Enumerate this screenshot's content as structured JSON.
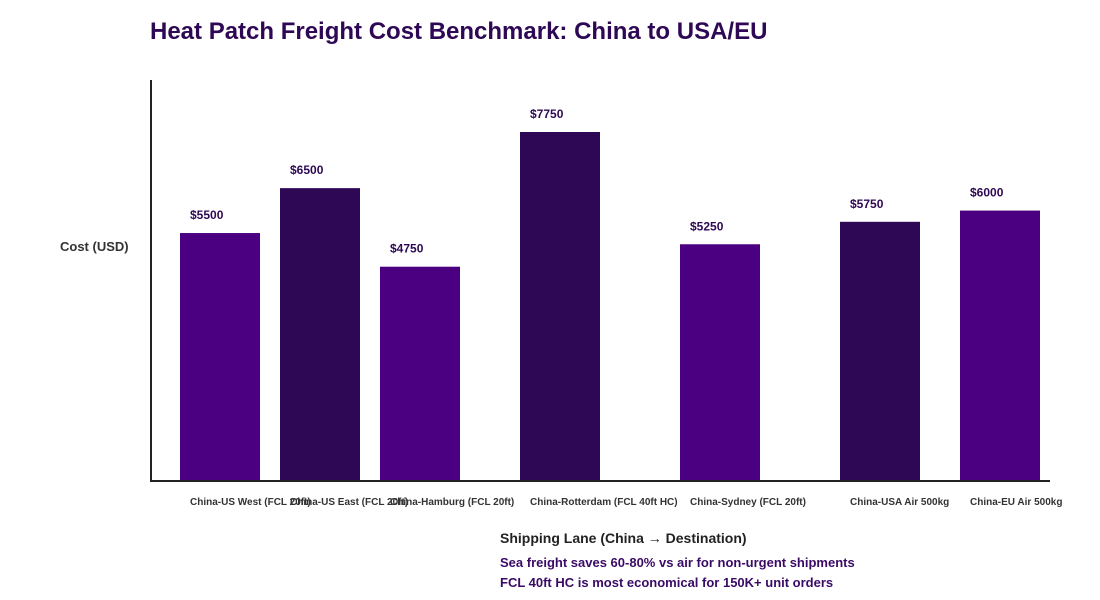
{
  "chart_data": {
    "type": "bar",
    "title": "Heat Patch Freight Cost Benchmark: China to USA/EU",
    "xlabel": "Shipping Lane (China → Destination)",
    "ylabel": "Cost (USD)",
    "categories": [
      "China-US West (FCL 20ft)",
      "China-US East (FCL 20ft)",
      "China-Hamburg (FCL 20ft)",
      "China-Rotterdam (FCL 40ft HC)",
      "China-Sydney (FCL 20ft)",
      "China-USA Air 500kg",
      "China-EU Air 500kg"
    ],
    "values": [
      5500,
      6500,
      4750,
      7750,
      5250,
      5750,
      6000
    ],
    "value_labels": [
      "$5500",
      "$6500",
      "$4750",
      "$7750",
      "$5250",
      "$5750",
      "$6000"
    ],
    "bar_colors": [
      "#4b0082",
      "#2e0854",
      "#4b0082",
      "#2e0854",
      "#4b0082",
      "#2e0854",
      "#4b0082"
    ],
    "grid": false,
    "notes": [
      "Sea freight saves 60-80% vs air for non-urgent shipments",
      "FCL 40ft HC is most economical for 150K+ unit orders"
    ]
  }
}
